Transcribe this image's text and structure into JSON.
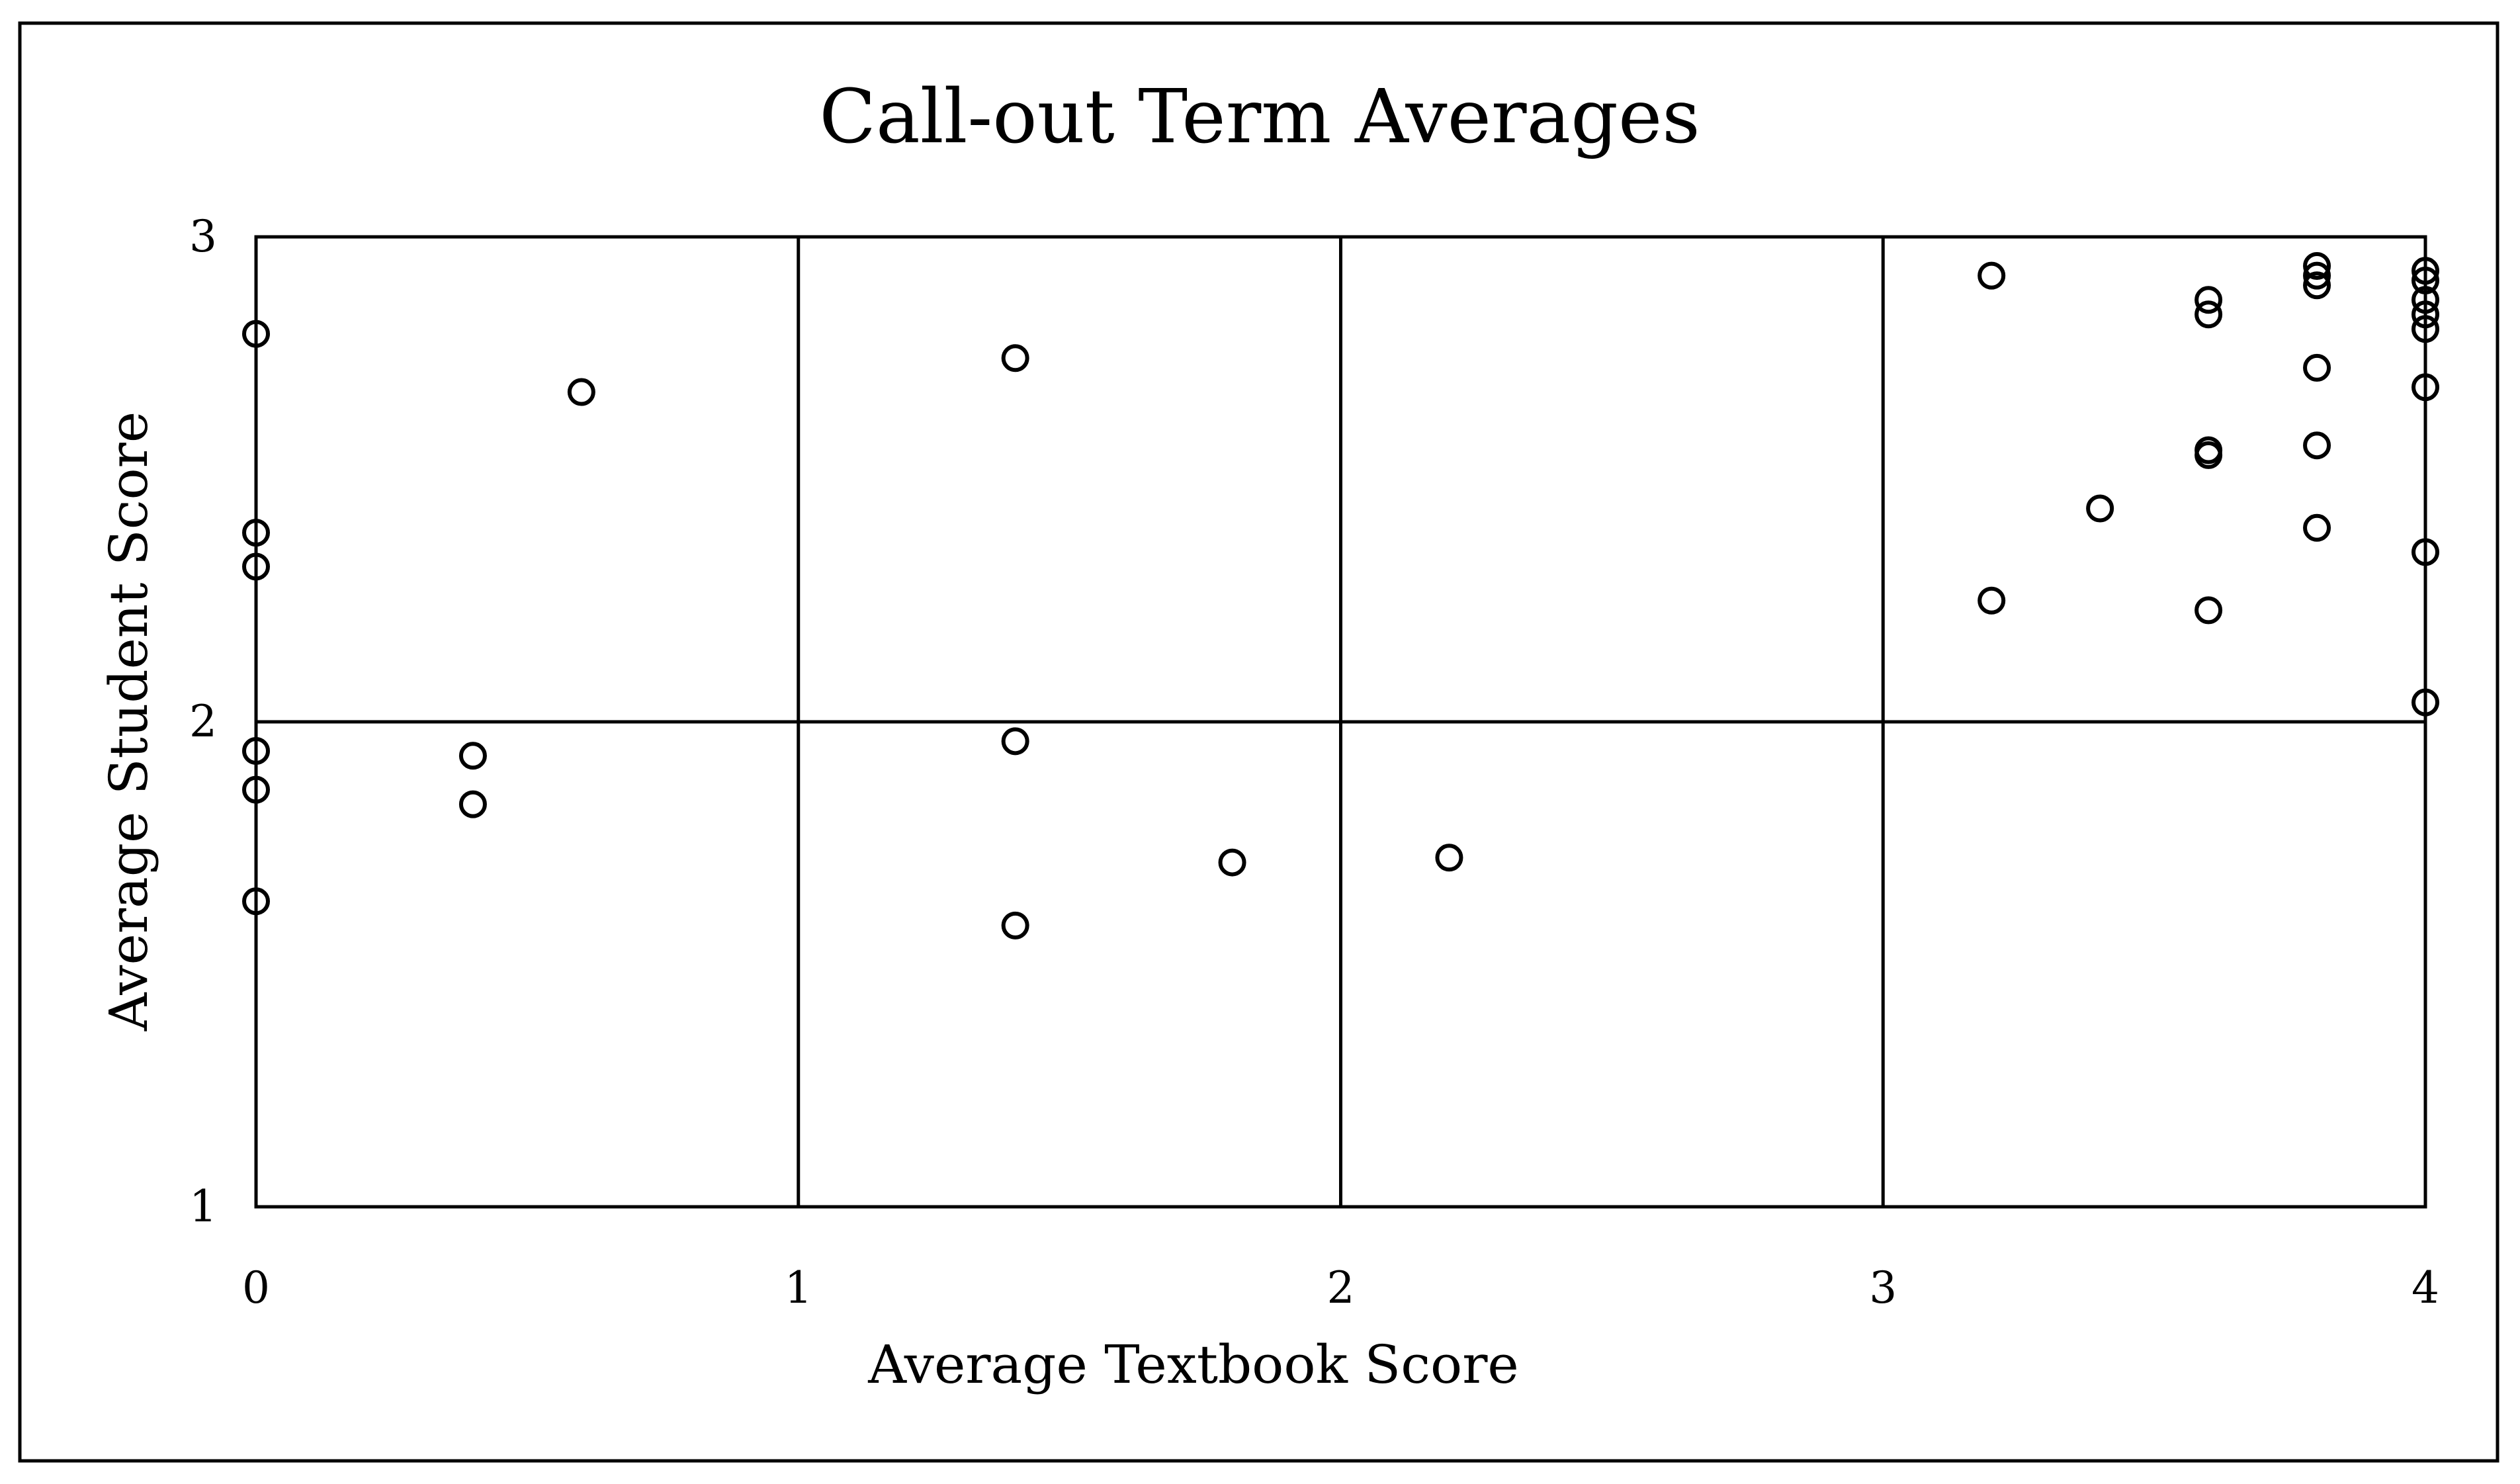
{
  "chart_data": {
    "type": "scatter",
    "title": "Call-out Term Averages",
    "xlabel": "Average Textbook Score",
    "ylabel": "Average Student Score",
    "xlim": [
      0,
      4
    ],
    "ylim": [
      1,
      3
    ],
    "x_ticks": [
      0,
      1,
      2,
      3,
      4
    ],
    "y_ticks": [
      1,
      2,
      3
    ],
    "grid": true,
    "legend": "none",
    "marker": "open-circle",
    "colors": {
      "marker": "#000000",
      "grid": "#000000",
      "frame": "#000000",
      "background": "#ffffff"
    },
    "series": [
      {
        "points": [
          [
            0.0,
            2.8
          ],
          [
            0.0,
            2.39
          ],
          [
            0.0,
            2.32
          ],
          [
            0.0,
            1.94
          ],
          [
            0.0,
            1.86
          ],
          [
            0.0,
            1.63
          ],
          [
            0.4,
            1.93
          ],
          [
            0.4,
            1.83
          ],
          [
            0.6,
            2.68
          ],
          [
            1.4,
            2.75
          ],
          [
            1.4,
            1.96
          ],
          [
            1.4,
            1.58
          ],
          [
            1.8,
            1.71
          ],
          [
            2.2,
            1.72
          ],
          [
            3.2,
            2.92
          ],
          [
            3.2,
            2.25
          ],
          [
            3.4,
            2.44
          ],
          [
            3.6,
            2.87
          ],
          [
            3.6,
            2.84
          ],
          [
            3.6,
            2.56
          ],
          [
            3.6,
            2.55
          ],
          [
            3.6,
            2.23
          ],
          [
            3.8,
            2.94
          ],
          [
            3.8,
            2.92
          ],
          [
            3.8,
            2.9
          ],
          [
            3.8,
            2.73
          ],
          [
            3.8,
            2.57
          ],
          [
            3.8,
            2.4
          ],
          [
            4.0,
            2.93
          ],
          [
            4.0,
            2.91
          ],
          [
            4.0,
            2.87
          ],
          [
            4.0,
            2.84
          ],
          [
            4.0,
            2.81
          ],
          [
            4.0,
            2.69
          ],
          [
            4.0,
            2.35
          ],
          [
            4.0,
            2.04
          ]
        ]
      }
    ]
  }
}
